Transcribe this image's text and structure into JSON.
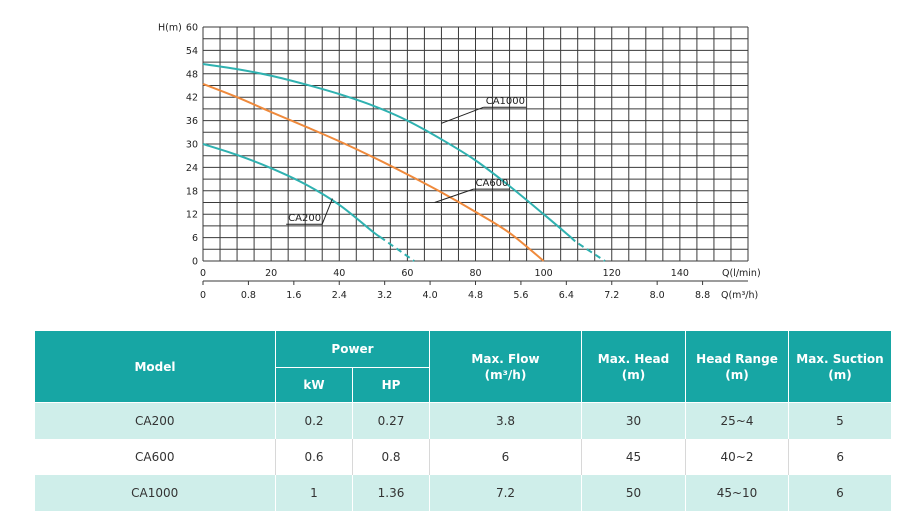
{
  "chart_data": {
    "type": "line",
    "ylabel": "H(m)",
    "xlabel_primary": "Q(l/min)",
    "xlabel_secondary": "Q(m³/h)",
    "ylim": [
      0,
      60
    ],
    "xlim": [
      0,
      160
    ],
    "y_ticks": [
      "0",
      "6",
      "12",
      "18",
      "24",
      "30",
      "36",
      "42",
      "48",
      "54",
      "60"
    ],
    "x_ticks_primary": [
      {
        "v": 0,
        "t": "0"
      },
      {
        "v": 20,
        "t": "20"
      },
      {
        "v": 40,
        "t": "40"
      },
      {
        "v": 60,
        "t": "60"
      },
      {
        "v": 80,
        "t": "80"
      },
      {
        "v": 100,
        "t": "100"
      },
      {
        "v": 120,
        "t": "120"
      },
      {
        "v": 140,
        "t": "140"
      }
    ],
    "x_ticks_secondary": [
      {
        "v": 0,
        "t": "0"
      },
      {
        "v": 0.8,
        "t": "0.8"
      },
      {
        "v": 1.6,
        "t": "1.6"
      },
      {
        "v": 2.4,
        "t": "2.4"
      },
      {
        "v": 3.2,
        "t": "3.2"
      },
      {
        "v": 4.0,
        "t": "4.0"
      },
      {
        "v": 4.8,
        "t": "4.8"
      },
      {
        "v": 5.6,
        "t": "5.6"
      },
      {
        "v": 6.4,
        "t": "6.4"
      },
      {
        "v": 7.2,
        "t": "7.2"
      },
      {
        "v": 8.0,
        "t": "8.0"
      },
      {
        "v": 8.8,
        "t": "8.8"
      }
    ],
    "grid": true,
    "series": [
      {
        "name": "CA1000",
        "color": "#2fb1b0",
        "x": [
          0,
          10,
          20,
          30,
          40,
          50,
          60,
          70,
          80,
          90,
          100,
          110,
          118
        ],
        "y": [
          50.5,
          49.2,
          47.5,
          45.3,
          42.8,
          39.8,
          36,
          31.2,
          25.8,
          19.2,
          12,
          4.6,
          0
        ],
        "dashed_from": 108
      },
      {
        "name": "CA600",
        "color": "#ef8a3c",
        "x": [
          0,
          10,
          20,
          30,
          40,
          50,
          60,
          70,
          80,
          90,
          100
        ],
        "y": [
          45.4,
          42,
          38.2,
          34.5,
          30.7,
          26.6,
          22.2,
          17.6,
          12.6,
          7.2,
          0
        ],
        "dashed_from": null
      },
      {
        "name": "CA200",
        "color": "#2fb1b0",
        "x": [
          0,
          10,
          20,
          30,
          40,
          50,
          62
        ],
        "y": [
          30,
          27.2,
          23.8,
          19.7,
          14.4,
          7.4,
          0
        ],
        "dashed_from": 52
      }
    ],
    "annotations": [
      {
        "text": "CA1000",
        "x": 83,
        "y": 40.2,
        "ax": 70,
        "ay": 35.3
      },
      {
        "text": "CA600",
        "x": 80,
        "y": 19.2,
        "ax": 68,
        "ay": 15
      },
      {
        "text": "CA200",
        "x": 25,
        "y": 10.2,
        "ax": 38,
        "ay": 16
      }
    ]
  },
  "table": {
    "headers": {
      "model": "Model",
      "power": "Power",
      "kw": "kW",
      "hp": "HP",
      "flow": "Max. Flow",
      "flow_unit": "(m³/h)",
      "head": "Max. Head",
      "head_unit": "(m)",
      "range": "Head Range",
      "range_unit": "(m)",
      "suction": "Max. Suction",
      "suction_unit": "(m)"
    },
    "rows": [
      {
        "model": "CA200",
        "kw": "0.2",
        "hp": "0.27",
        "flow": "3.8",
        "head": "30",
        "range": "25~4",
        "suction": "5"
      },
      {
        "model": "CA600",
        "kw": "0.6",
        "hp": "0.8",
        "flow": "6",
        "head": "45",
        "range": "40~2",
        "suction": "6"
      },
      {
        "model": "CA1000",
        "kw": "1",
        "hp": "1.36",
        "flow": "7.2",
        "head": "50",
        "range": "45~10",
        "suction": "6"
      }
    ]
  }
}
